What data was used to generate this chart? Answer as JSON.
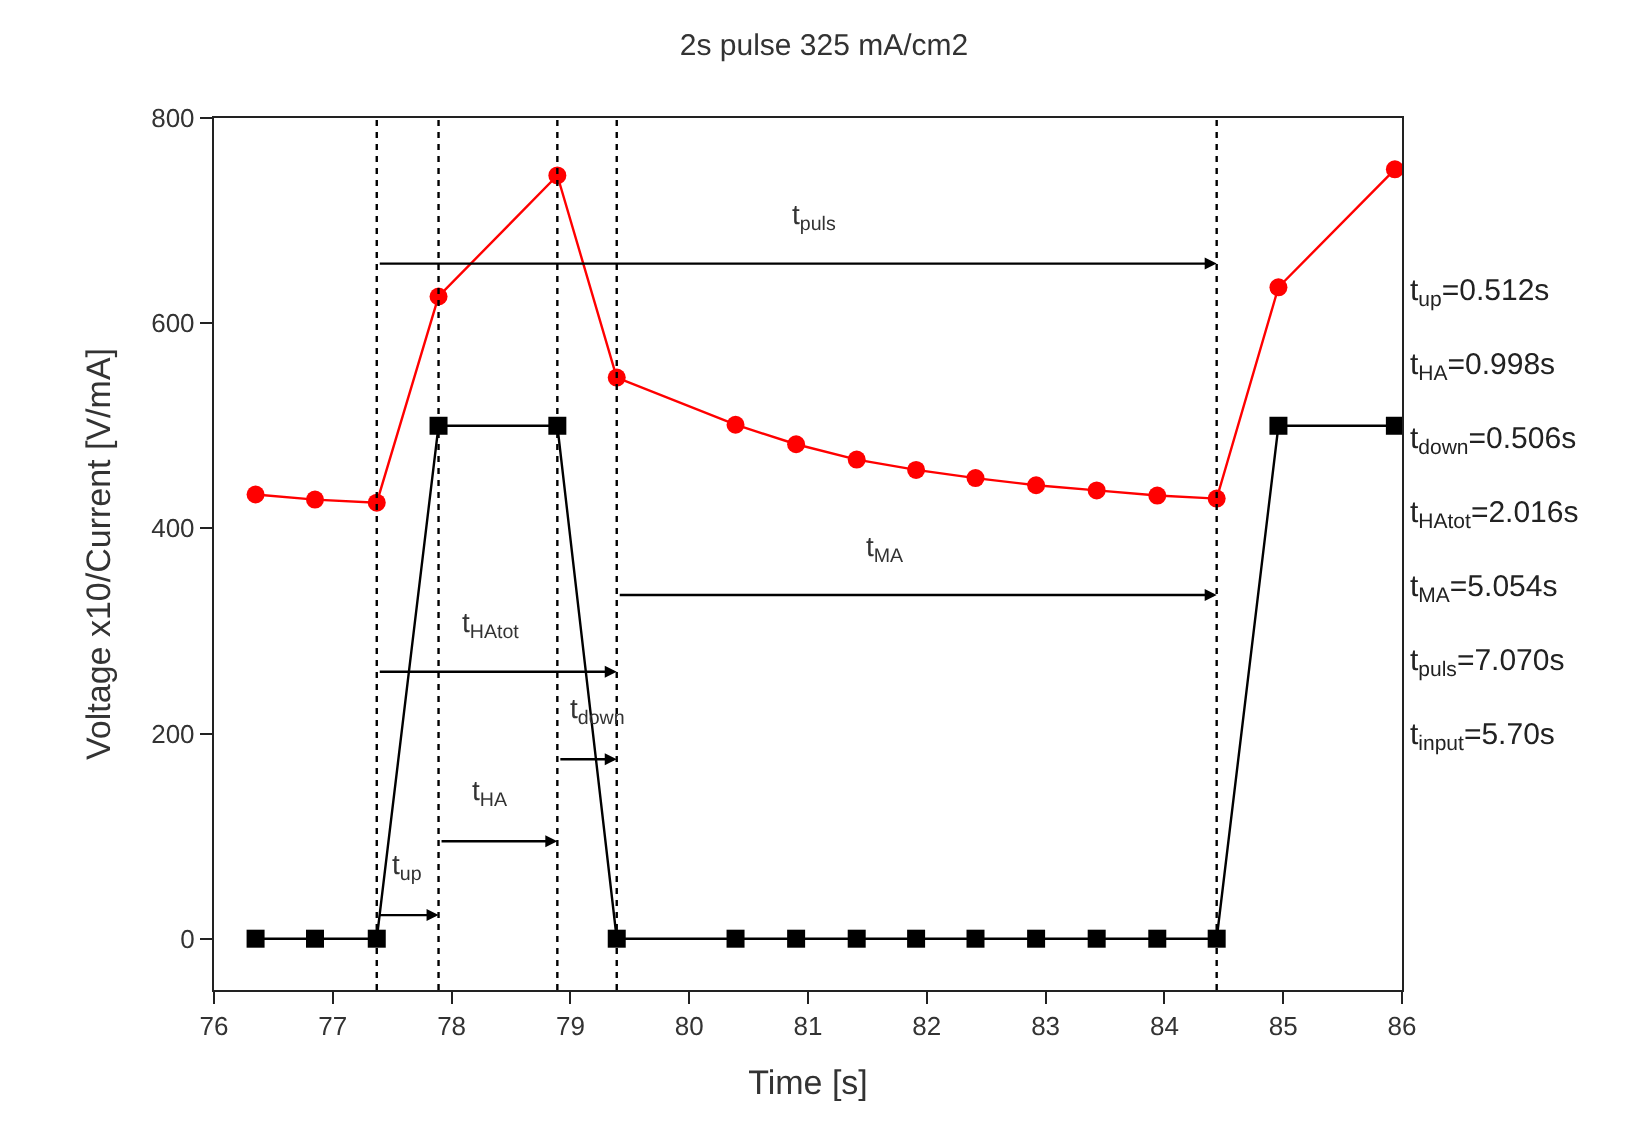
{
  "chart_data": {
    "type": "line",
    "title": "2s pulse 325 mA/cm2",
    "xlabel": "Time [s]",
    "ylabel": "Voltage x10/Current [V/mA]",
    "xlim": [
      76,
      86
    ],
    "xticks": [
      76,
      77,
      78,
      79,
      80,
      81,
      82,
      83,
      84,
      85,
      86
    ],
    "ylim": [
      -50,
      800
    ],
    "yticks": [
      0,
      200,
      400,
      600,
      800
    ],
    "series": [
      {
        "color": "#ff0000",
        "marker": "circle",
        "line_style": "solid",
        "x": [
          76.35,
          76.85,
          77.37,
          77.89,
          78.89,
          79.39,
          80.39,
          80.9,
          81.41,
          81.91,
          82.41,
          82.92,
          83.43,
          83.94,
          84.44,
          84.96,
          85.94
        ],
        "values": [
          433,
          428,
          425,
          626,
          744,
          547,
          501,
          482,
          467,
          457,
          449,
          442,
          437,
          432,
          429,
          635,
          750
        ]
      },
      {
        "color": "#000000",
        "marker": "square",
        "line_style": "solid",
        "x": [
          76.35,
          76.85,
          77.37,
          77.89,
          78.89,
          79.39,
          80.39,
          80.9,
          81.41,
          81.91,
          82.41,
          82.92,
          83.43,
          83.94,
          84.44,
          84.96,
          85.94
        ],
        "values": [
          0,
          0,
          0,
          500,
          500,
          0,
          0,
          0,
          0,
          0,
          0,
          0,
          0,
          0,
          0,
          500,
          500
        ]
      }
    ],
    "ref_lines": [
      {
        "axis": "x",
        "value": 77.37,
        "color": "#000000",
        "line_style": "dotted"
      },
      {
        "axis": "x",
        "value": 77.89,
        "color": "#000000",
        "line_style": "dotted"
      },
      {
        "axis": "x",
        "value": 78.89,
        "color": "#000000",
        "line_style": "dotted"
      },
      {
        "axis": "x",
        "value": 79.39,
        "color": "#000000",
        "line_style": "dotted"
      },
      {
        "axis": "x",
        "value": 84.44,
        "color": "#000000",
        "line_style": "dotted"
      }
    ],
    "annotations": [
      "t$_{puls}$",
      "t$_{MA}$",
      "t$_{HAtot}$",
      {
        "text": "t$_{down}$",
        "x": 79.39,
        "y": 175
      },
      {
        "text": "t$_{HA}$",
        "x": 78.89,
        "y": 95
      },
      {
        "text": "t$_{up}$",
        "x": 77.89,
        "y": 23
      },
      "t$_{up}$=0.512s",
      "t$_{HA}$=0.998s",
      "t$_{down}$=0.506s",
      "t$_{HAtot}$=2.016s",
      "t$_{MA}$=5.054s",
      "t$_{puls}$=7.070s",
      "t$_{input}$=5.70s"
    ]
  }
}
